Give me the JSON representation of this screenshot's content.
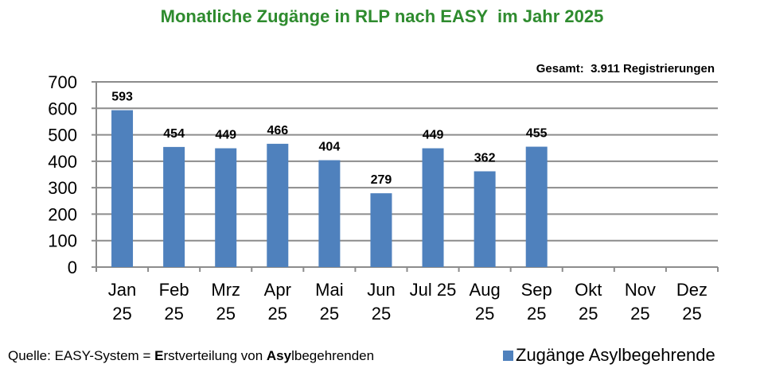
{
  "chart_data": {
    "type": "bar",
    "title": "Monatliche Zugänge in RLP nach EASY  im Jahr 2025",
    "annotation": "Gesamt:  3.911 Registrierungen",
    "categories": [
      [
        "Jan",
        "25"
      ],
      [
        "Feb",
        "25"
      ],
      [
        "Mrz",
        "25"
      ],
      [
        "Apr",
        "25"
      ],
      [
        "Mai",
        "25"
      ],
      [
        "Jun",
        "25"
      ],
      [
        "Jul 25"
      ],
      [
        "Aug",
        "25"
      ],
      [
        "Sep",
        "25"
      ],
      [
        "Okt",
        "25"
      ],
      [
        "Nov",
        "25"
      ],
      [
        "Dez",
        "25"
      ]
    ],
    "series": [
      {
        "name": "Zugänge Asylbegehrende",
        "color": "#4f81bd",
        "values": [
          593,
          454,
          449,
          466,
          404,
          279,
          449,
          362,
          455,
          null,
          null,
          null
        ]
      }
    ],
    "yticks": [
      "0",
      "100",
      "200",
      "300",
      "400",
      "500",
      "600",
      "700"
    ],
    "ylim": [
      0,
      700
    ],
    "xlabel": "",
    "ylabel": "",
    "grid": true,
    "legend_position": "bottom-right"
  },
  "source": {
    "prefix": "Quelle: EASY-System = ",
    "e_bold": "E",
    "mid": "rstverteilung von ",
    "asy_bold": "Asy",
    "suffix": "lbegehrenden"
  },
  "colors": {
    "title": "#2e8b2e",
    "bar": "#4f81bd",
    "grid": "#8c8c8c"
  }
}
